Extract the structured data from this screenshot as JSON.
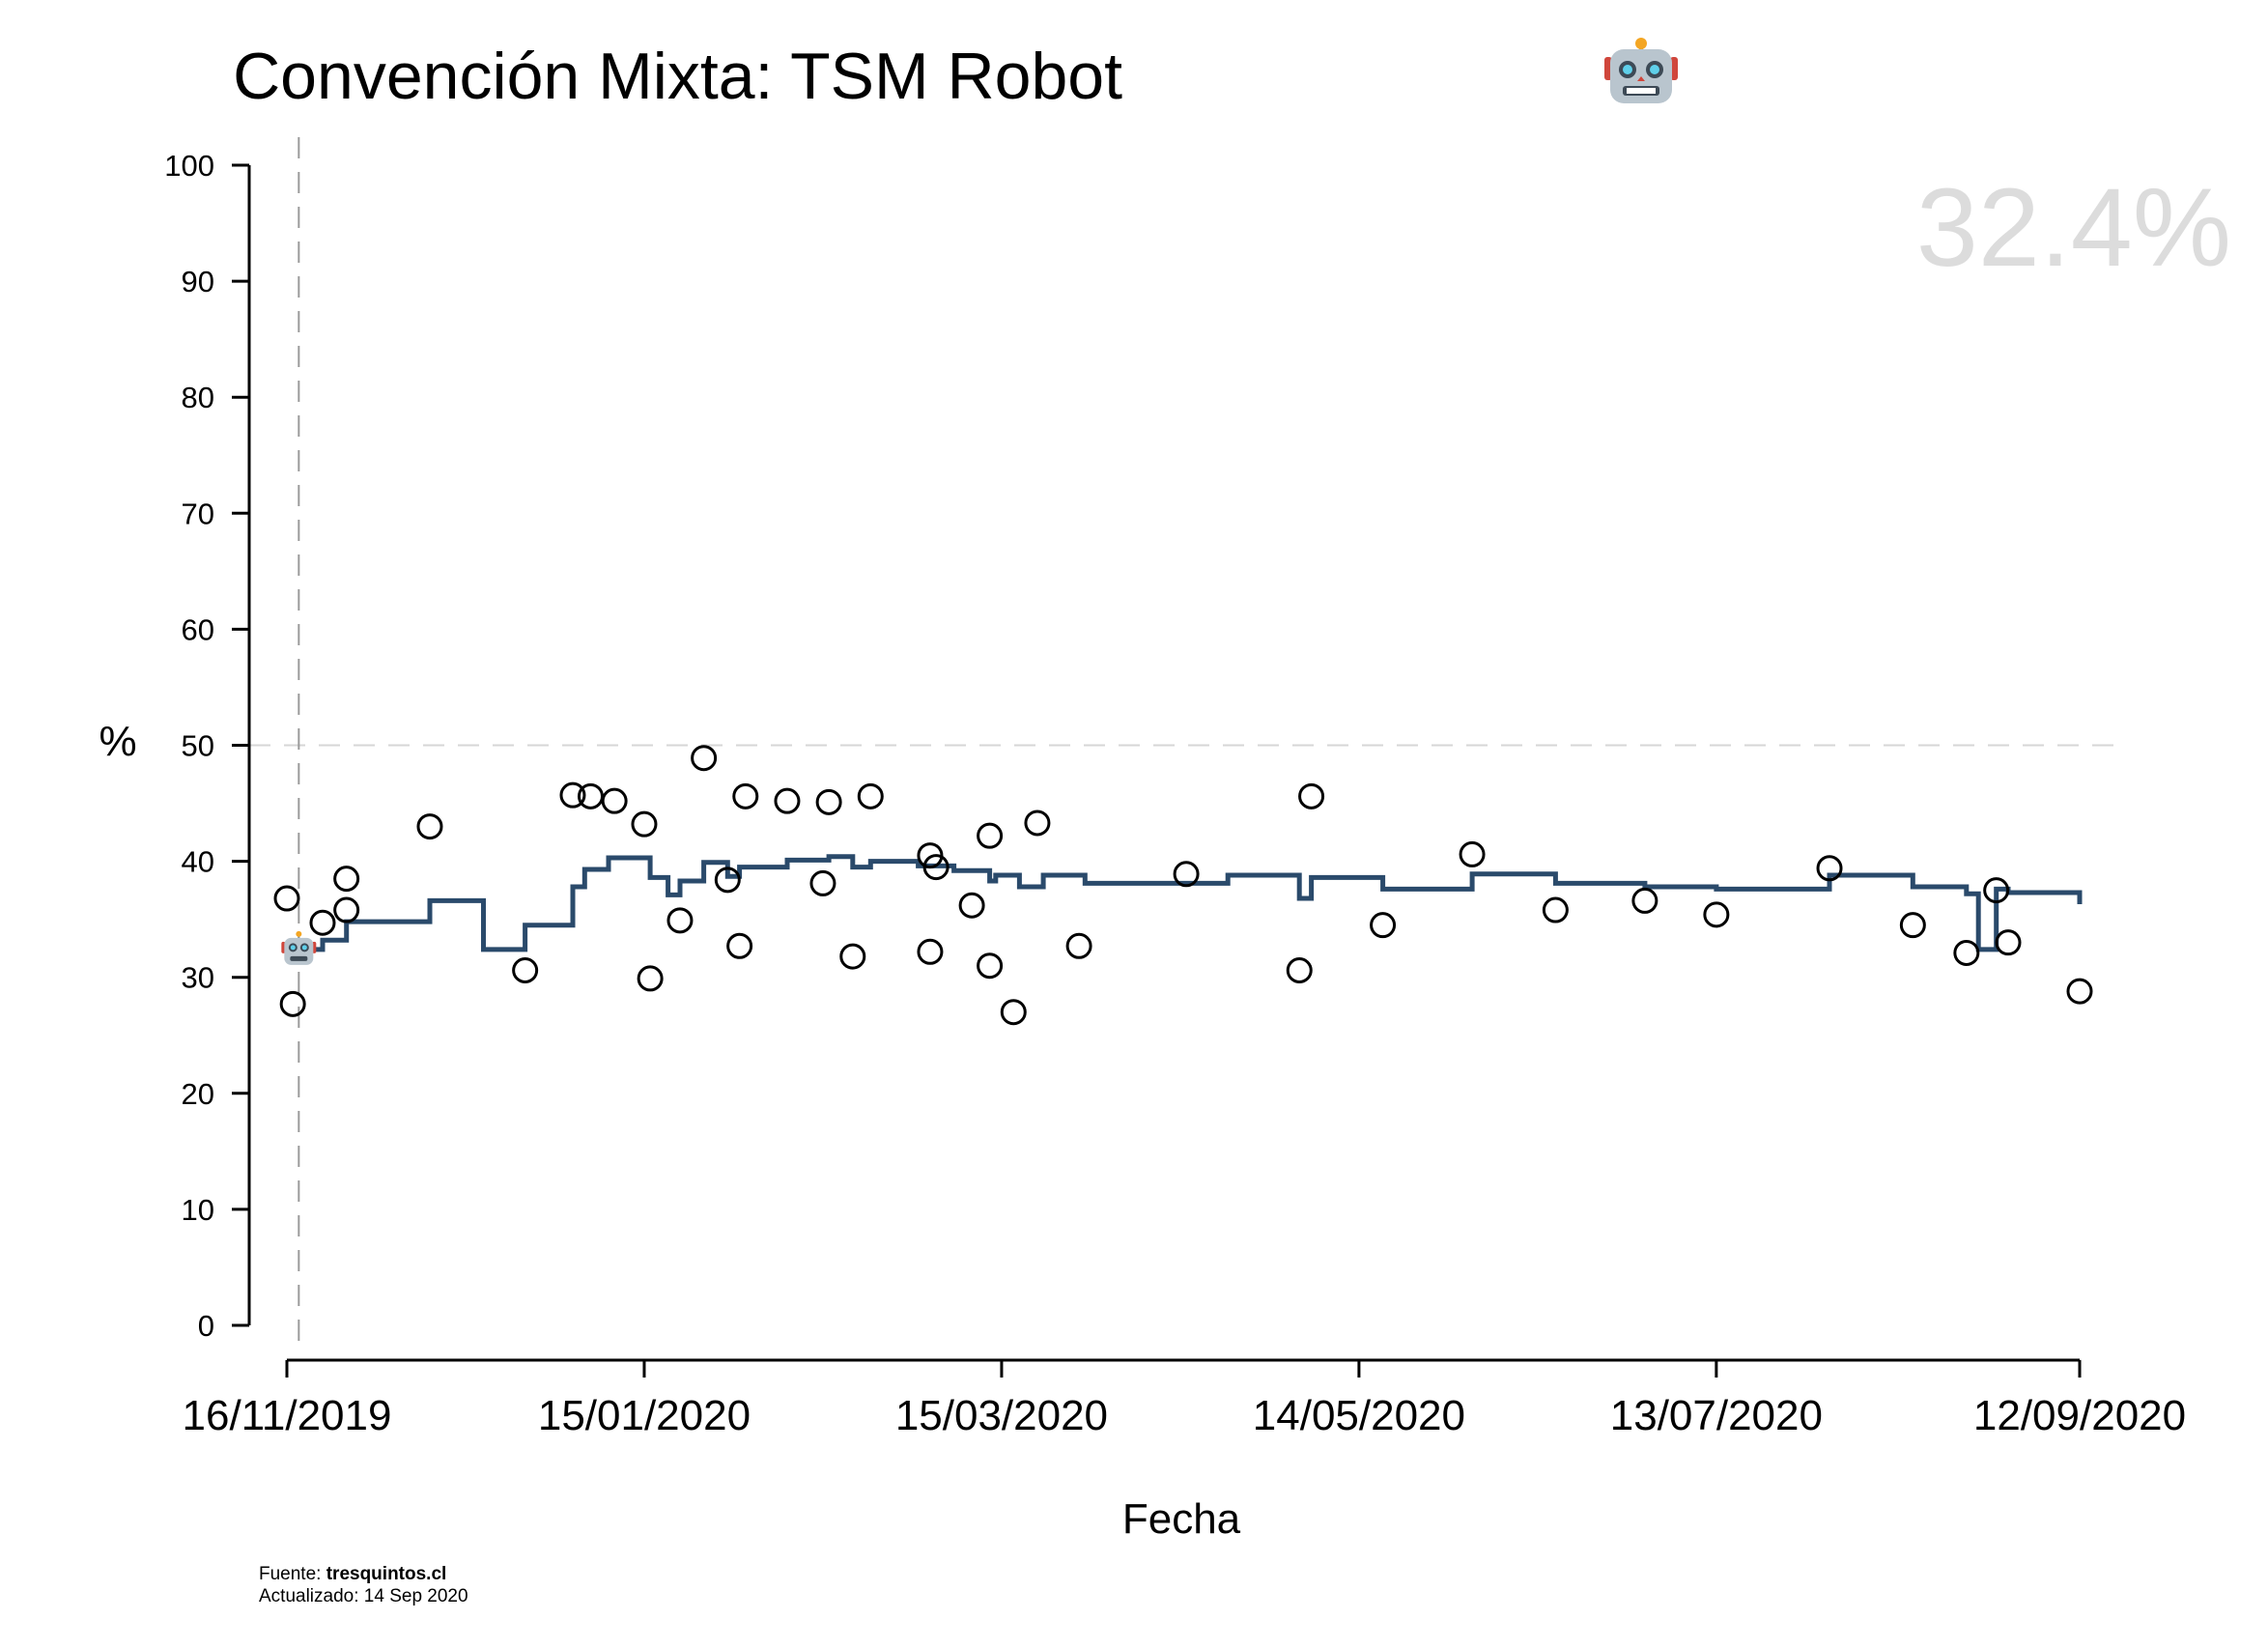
{
  "chart_data": {
    "type": "line",
    "title": "Convención Mixta: TSM Robot",
    "title_icon": "robot-face-icon",
    "xlabel": "Fecha",
    "ylabel": "%",
    "ylim": [
      0,
      100
    ],
    "yticks": [
      0,
      10,
      20,
      30,
      40,
      50,
      60,
      70,
      80,
      90,
      100
    ],
    "xlim": [
      "2019-11-16",
      "2020-09-12"
    ],
    "xticks": [
      "16/11/2019",
      "15/01/2020",
      "15/03/2020",
      "14/05/2020",
      "13/07/2020",
      "12/09/2020"
    ],
    "xtick_dates": [
      "2019-11-16",
      "2020-01-15",
      "2020-03-15",
      "2020-05-14",
      "2020-07-13",
      "2020-09-12"
    ],
    "reference_line_y": 50,
    "reference_line_date": "2019-11-18",
    "current_value_label": "32.4%",
    "current_value": 32.4,
    "marker": {
      "date": "2019-11-18",
      "value": 32.4,
      "icon": "robot-face-icon"
    },
    "line_color": "#2a4a6b",
    "series": [
      {
        "type": "step",
        "points": [
          [
            "2019-11-18",
            32.4
          ],
          [
            "2019-11-22",
            33.2
          ],
          [
            "2019-11-26",
            34.8
          ],
          [
            "2019-12-10",
            36.6
          ],
          [
            "2019-12-19",
            32.4
          ],
          [
            "2019-12-26",
            34.5
          ],
          [
            "2020-01-03",
            37.8
          ],
          [
            "2020-01-05",
            39.3
          ],
          [
            "2020-01-09",
            40.3
          ],
          [
            "2020-01-16",
            38.6
          ],
          [
            "2020-01-19",
            37.1
          ],
          [
            "2020-01-21",
            38.3
          ],
          [
            "2020-01-25",
            39.9
          ],
          [
            "2020-01-29",
            38.7
          ],
          [
            "2020-01-31",
            39.5
          ],
          [
            "2020-02-08",
            40.1
          ],
          [
            "2020-02-15",
            40.4
          ],
          [
            "2020-02-19",
            39.5
          ],
          [
            "2020-02-22",
            40.0
          ],
          [
            "2020-03-01",
            39.6
          ],
          [
            "2020-03-07",
            39.2
          ],
          [
            "2020-03-13",
            38.3
          ],
          [
            "2020-03-14",
            38.8
          ],
          [
            "2020-03-18",
            37.8
          ],
          [
            "2020-03-22",
            38.8
          ],
          [
            "2020-03-29",
            38.1
          ],
          [
            "2020-04-22",
            38.8
          ],
          [
            "2020-05-04",
            36.8
          ],
          [
            "2020-05-06",
            38.6
          ],
          [
            "2020-05-18",
            37.6
          ],
          [
            "2020-06-02",
            38.9
          ],
          [
            "2020-06-16",
            38.1
          ],
          [
            "2020-07-01",
            37.8
          ],
          [
            "2020-07-13",
            37.6
          ],
          [
            "2020-08-01",
            38.8
          ],
          [
            "2020-08-15",
            37.8
          ],
          [
            "2020-08-24",
            37.2
          ],
          [
            "2020-08-26",
            32.4
          ],
          [
            "2020-08-29",
            37.6
          ],
          [
            "2020-08-31",
            37.3
          ],
          [
            "2020-09-12",
            36.3
          ]
        ]
      },
      {
        "type": "scatter",
        "name": "",
        "points": [
          [
            "2019-11-16",
            36.8
          ],
          [
            "2019-11-17",
            27.7
          ],
          [
            "2019-11-22",
            34.7
          ],
          [
            "2019-11-26",
            35.8
          ],
          [
            "2019-11-26",
            38.5
          ],
          [
            "2019-12-10",
            43.0
          ],
          [
            "2019-12-26",
            30.6
          ],
          [
            "2020-01-03",
            45.7
          ],
          [
            "2020-01-06",
            45.6
          ],
          [
            "2020-01-10",
            45.2
          ],
          [
            "2020-01-15",
            43.2
          ],
          [
            "2020-01-16",
            29.9
          ],
          [
            "2020-01-21",
            34.9
          ],
          [
            "2020-01-25",
            48.9
          ],
          [
            "2020-01-29",
            38.4
          ],
          [
            "2020-01-31",
            32.7
          ],
          [
            "2020-02-01",
            45.6
          ],
          [
            "2020-02-08",
            45.2
          ],
          [
            "2020-02-14",
            38.1
          ],
          [
            "2020-02-15",
            45.1
          ],
          [
            "2020-02-19",
            31.8
          ],
          [
            "2020-02-22",
            45.6
          ],
          [
            "2020-03-03",
            40.5
          ],
          [
            "2020-03-03",
            32.2
          ],
          [
            "2020-03-04",
            39.5
          ],
          [
            "2020-03-10",
            36.2
          ],
          [
            "2020-03-13",
            31.0
          ],
          [
            "2020-03-13",
            42.2
          ],
          [
            "2020-03-17",
            27.0
          ],
          [
            "2020-03-21",
            43.3
          ],
          [
            "2020-03-28",
            32.7
          ],
          [
            "2020-04-15",
            38.9
          ],
          [
            "2020-05-04",
            30.6
          ],
          [
            "2020-05-06",
            45.6
          ],
          [
            "2020-05-18",
            34.5
          ],
          [
            "2020-06-02",
            40.6
          ],
          [
            "2020-06-16",
            35.8
          ],
          [
            "2020-07-01",
            36.6
          ],
          [
            "2020-07-13",
            35.4
          ],
          [
            "2020-08-01",
            39.4
          ],
          [
            "2020-08-15",
            34.5
          ],
          [
            "2020-08-24",
            32.1
          ],
          [
            "2020-08-29",
            37.5
          ],
          [
            "2020-08-31",
            33.0
          ],
          [
            "2020-09-12",
            28.8
          ]
        ]
      }
    ]
  },
  "footer": {
    "source_label": "Fuente: ",
    "source": "tresquintos.cl",
    "updated": "Actualizado: 14 Sep 2020"
  }
}
